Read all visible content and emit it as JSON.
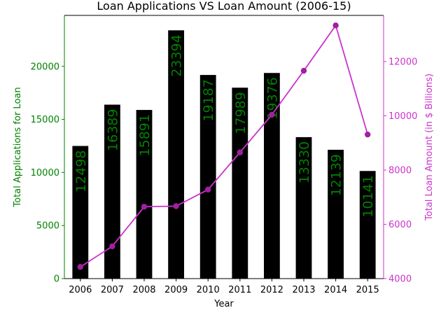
{
  "chart_data": {
    "type": "bar",
    "title": "Loan Applications VS Loan Amount (2006-15)",
    "xlabel": "Year",
    "ylabel_left": "Total Applications for Loan",
    "ylabel_right": "Total Loan Amount (in $ Billions)",
    "categories": [
      "2006",
      "2007",
      "2008",
      "2009",
      "2010",
      "2011",
      "2012",
      "2013",
      "2014",
      "2015"
    ],
    "series": [
      {
        "type": "bar",
        "axis": "left",
        "color": "#000000",
        "label_color": "#008000",
        "values": [
          12498,
          16389,
          15891,
          23394,
          19187,
          17989,
          19376,
          13330,
          12139,
          10141
        ]
      },
      {
        "type": "line",
        "axis": "right",
        "color": "#cc33cc",
        "marker_color": "#a020a0",
        "values": [
          4430,
          5190,
          6650,
          6670,
          7280,
          8650,
          10040,
          11660,
          13330,
          9310
        ]
      }
    ],
    "ylim_left": [
      0,
      24800
    ],
    "ylim_right": [
      4000,
      13700
    ],
    "yticks_left": [
      0,
      5000,
      10000,
      15000,
      20000
    ],
    "yticks_right": [
      4000,
      6000,
      8000,
      10000,
      12000
    ],
    "left_axis_color": "#008000",
    "right_axis_color": "#cc33cc",
    "grid": false,
    "legend": "none"
  }
}
